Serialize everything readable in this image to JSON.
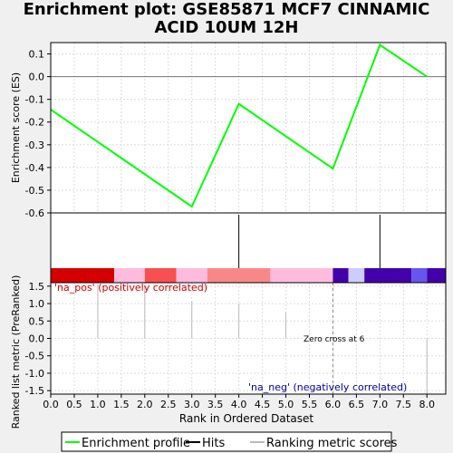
{
  "title_lines": [
    "Enrichment plot: GSE85871 MCF7 CINNAMIC",
    "ACID 10UM 12H"
  ],
  "legend": {
    "enrichment_profile": "Enrichment profile",
    "hits": "Hits",
    "ranking_metric_scores": "Ranking metric scores"
  },
  "colors": {
    "profile": "#00ff00",
    "hits": "#000000",
    "metric": "#bbbbbb",
    "pos_label": "#cc0000",
    "neg_label": "#000099",
    "grid": "#dddddd"
  },
  "chart_data": [
    {
      "type": "line",
      "panel": "enrichment-score",
      "ylabel": "Enrichment score (ES)",
      "ylim": [
        -0.6,
        0.15
      ],
      "yticks": [
        "0.1",
        "0.0",
        "-0.1",
        "-0.2",
        "-0.3",
        "-0.4",
        "-0.5",
        "-0.6"
      ],
      "ytick_values": [
        0.1,
        0.0,
        -0.1,
        -0.2,
        -0.3,
        -0.4,
        -0.5,
        -0.6
      ],
      "grid": true,
      "series": [
        {
          "name": "Enrichment profile",
          "x": [
            0,
            3,
            4,
            6,
            7,
            8
          ],
          "y": [
            -0.145,
            -0.572,
            -0.12,
            -0.405,
            0.14,
            0.0
          ]
        }
      ]
    },
    {
      "type": "bar",
      "panel": "hits",
      "hits_x": [
        4,
        7
      ],
      "heatmap_segments": [
        {
          "from": 0.0,
          "to": 1.35,
          "color": "#d40000"
        },
        {
          "from": 1.35,
          "to": 2.0,
          "color": "#ffbbdd"
        },
        {
          "from": 2.0,
          "to": 2.67,
          "color": "#f85050"
        },
        {
          "from": 2.67,
          "to": 3.33,
          "color": "#ffbbdd"
        },
        {
          "from": 3.33,
          "to": 4.67,
          "color": "#f88888"
        },
        {
          "from": 4.67,
          "to": 6.0,
          "color": "#ffbbdd"
        },
        {
          "from": 6.0,
          "to": 6.33,
          "color": "#4400aa"
        },
        {
          "from": 6.33,
          "to": 6.67,
          "color": "#ccccff"
        },
        {
          "from": 6.67,
          "to": 7.67,
          "color": "#4400aa"
        },
        {
          "from": 7.67,
          "to": 8.0,
          "color": "#6655ee"
        },
        {
          "from": 8.0,
          "to": 8.4,
          "color": "#4400aa"
        }
      ]
    },
    {
      "type": "bar",
      "panel": "ranked-metric",
      "ylabel": "Ranked list metric (PreRanked)",
      "xlabel": "Rank in Ordered Dataset",
      "xlim": [
        0,
        8.4
      ],
      "xticks": [
        "0.0",
        "0.5",
        "1.0",
        "1.5",
        "2.0",
        "2.5",
        "3.0",
        "3.5",
        "4.0",
        "4.5",
        "5.0",
        "5.5",
        "6.0",
        "6.5",
        "7.0",
        "7.5",
        "8.0"
      ],
      "xtick_values": [
        0,
        0.5,
        1,
        1.5,
        2,
        2.5,
        3,
        3.5,
        4,
        4.5,
        5,
        5.5,
        6,
        6.5,
        7,
        7.5,
        8
      ],
      "ylim": [
        -1.6,
        1.6
      ],
      "yticks": [
        "1.5",
        "1.0",
        "0.5",
        "0.0",
        "-0.5",
        "-1.0",
        "-1.5"
      ],
      "ytick_values": [
        1.5,
        1.0,
        0.5,
        0.0,
        -0.5,
        -1.0,
        -1.5
      ],
      "grid": true,
      "x": [
        0,
        1,
        2,
        3,
        4,
        5,
        6,
        7,
        8
      ],
      "values": [
        1.55,
        1.55,
        1.5,
        1.08,
        1.0,
        0.75,
        0.0,
        -0.02,
        -1.6
      ],
      "zero_cross_x": 6,
      "annotations": {
        "pos": "'na_pos' (positively correlated)",
        "neg": "'na_neg' (negatively correlated)",
        "zero_cross": "Zero cross at 6"
      }
    }
  ]
}
